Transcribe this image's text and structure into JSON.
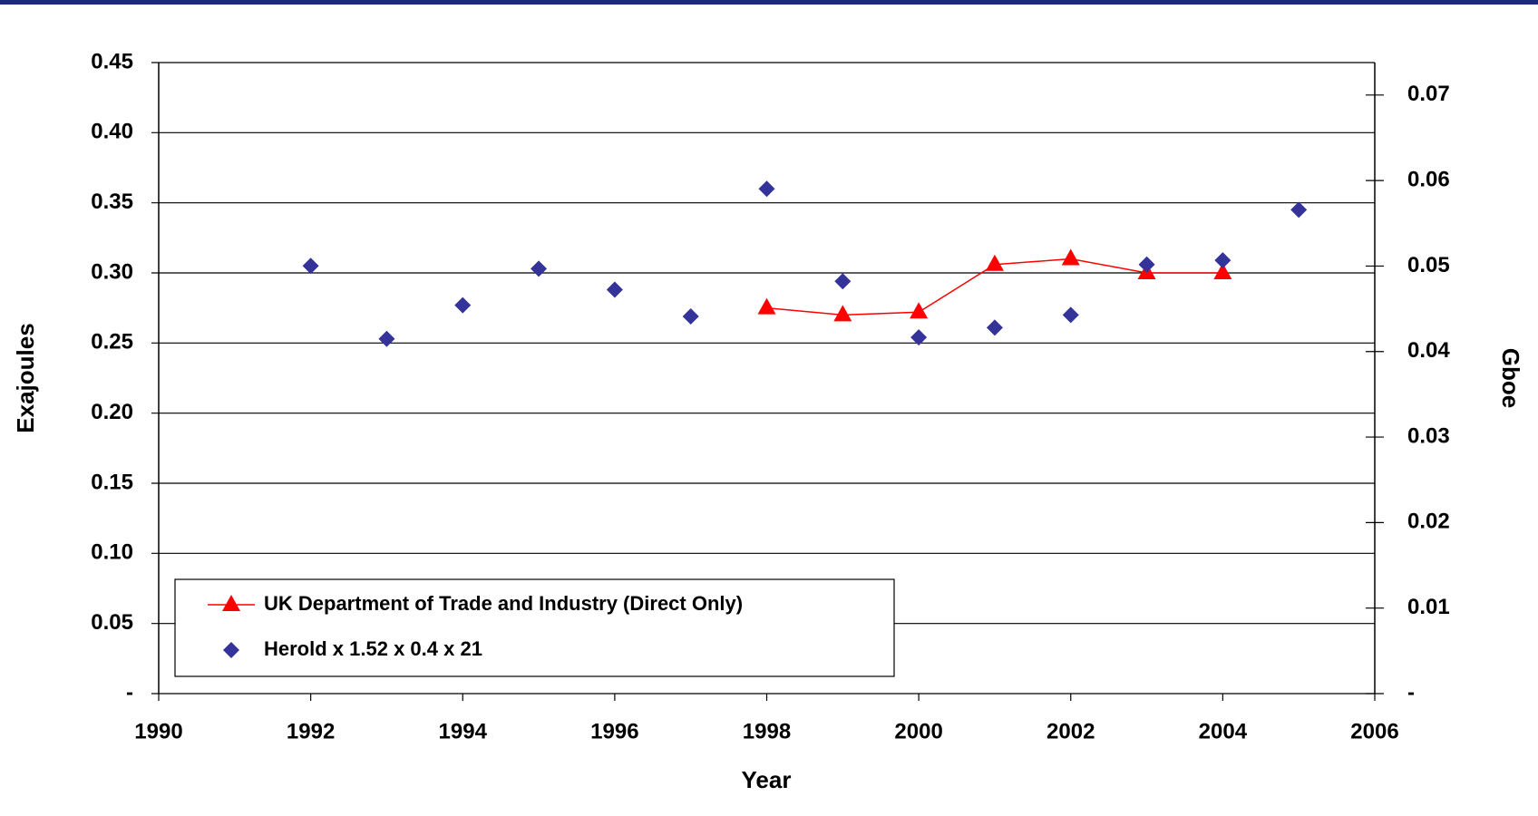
{
  "chart_data": {
    "type": "line",
    "x_label": "Year",
    "y_label": "Exajoules",
    "y2_label": "Gboe",
    "xlim": [
      1990,
      2006
    ],
    "xticks": [
      1990,
      1992,
      1994,
      1996,
      1998,
      2000,
      2002,
      2004,
      2006
    ],
    "ylim": [
      0,
      0.45
    ],
    "yticks": [
      {
        "value": 0,
        "label": "-"
      },
      0.05,
      {
        "value": 0.1,
        "label": "0.10"
      },
      0.15,
      {
        "value": 0.2,
        "label": "0.20"
      },
      0.25,
      {
        "value": 0.3,
        "label": "0.30"
      },
      0.35,
      {
        "value": 0.4,
        "label": "0.40"
      },
      0.45
    ],
    "y2lim": [
      0,
      0.0738
    ],
    "y2ticks": [
      {
        "value": 0,
        "label": "-"
      },
      0.01,
      0.02,
      0.03,
      0.04,
      0.05,
      0.06,
      0.07
    ],
    "grid": true,
    "legend": "lower-left",
    "series": [
      {
        "name": "UK Department of Trade and Industry (Direct Only)",
        "color": "#ff0000",
        "marker": "triangle",
        "line": true,
        "x": [
          1998,
          1999,
          2000,
          2001,
          2002,
          2003,
          2004
        ],
        "values": [
          0.275,
          0.27,
          0.272,
          0.306,
          0.31,
          0.3,
          0.3
        ]
      },
      {
        "name": "Herold x 1.52 x 0.4 x 21",
        "color": "#333399",
        "marker": "diamond",
        "line": false,
        "x": [
          1992,
          1993,
          1994,
          1995,
          1996,
          1997,
          1998,
          1999,
          2000,
          2001,
          2002,
          2003,
          2004,
          2005
        ],
        "values": [
          0.305,
          0.253,
          0.277,
          0.303,
          0.288,
          0.269,
          0.36,
          0.294,
          0.254,
          0.261,
          0.27,
          0.306,
          0.309,
          0.345
        ]
      }
    ]
  }
}
